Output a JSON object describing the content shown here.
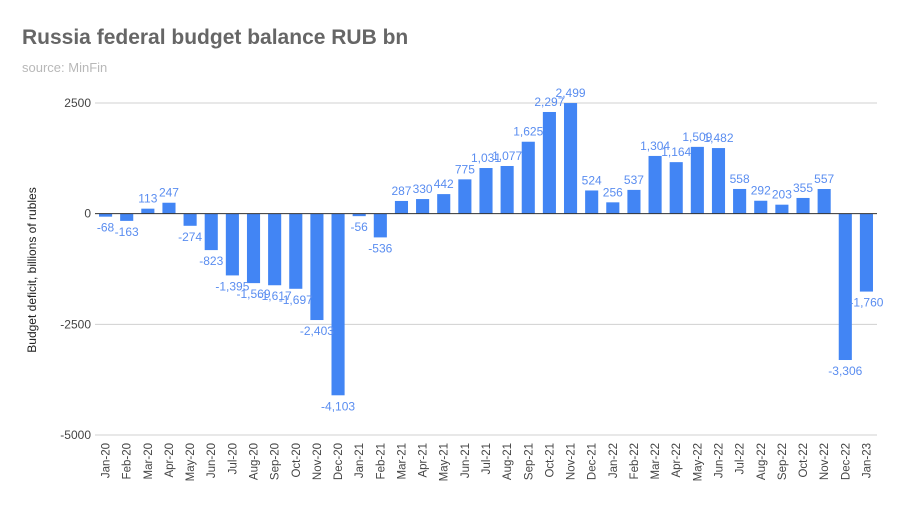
{
  "chart_data": {
    "type": "bar",
    "title": "Russia federal budget balance RUB bn",
    "subtitle": "source: MinFin",
    "xlabel": "",
    "ylabel": "Budget deficit, billions of rubles",
    "ylim": [
      -5000,
      2500
    ],
    "yticks": [
      2500,
      0,
      -2500,
      -5000
    ],
    "bar_color": "#4285f4",
    "label_color": "#5a8df0",
    "grid": true,
    "categories": [
      "Jan-20",
      "Feb-20",
      "Mar-20",
      "Apr-20",
      "May-20",
      "Jun-20",
      "Jul-20",
      "Aug-20",
      "Sep-20",
      "Oct-20",
      "Nov-20",
      "Dec-20",
      "Jan-21",
      "Feb-21",
      "Mar-21",
      "Apr-21",
      "May-21",
      "Jun-21",
      "Jul-21",
      "Aug-21",
      "Sep-21",
      "Oct-21",
      "Nov-21",
      "Dec-21",
      "Jan-22",
      "Feb-22",
      "Mar-22",
      "Apr-22",
      "May-22",
      "Jun-22",
      "Jul-22",
      "Aug-22",
      "Sep-22",
      "Oct-22",
      "Nov-22",
      "Dec-22",
      "Jan-23"
    ],
    "values": [
      -68,
      -163,
      113,
      247,
      -274,
      -823,
      -1395,
      -1569,
      -1617,
      -1697,
      -2403,
      -4103,
      -56,
      -536,
      287,
      330,
      442,
      775,
      1031,
      1077,
      1625,
      2297,
      2499,
      524,
      256,
      537,
      1304,
      1164,
      1509,
      1482,
      558,
      292,
      203,
      355,
      557,
      -3306,
      -1760
    ],
    "value_labels": [
      "-68",
      "-163",
      "113",
      "247",
      "-274",
      "-823",
      "-1,395",
      "-1,569",
      "-1,617",
      "-1,697",
      "-2,403",
      "-4,103",
      "-56",
      "-536",
      "287",
      "330",
      "442",
      "775",
      "1,031",
      "1,077",
      "1,625",
      "2,297",
      "2,499",
      "524",
      "256",
      "537",
      "1,304",
      "1,164",
      "1,509",
      "1,482",
      "558",
      "292",
      "203",
      "355",
      "557",
      "-3,306",
      "-1,760"
    ]
  }
}
